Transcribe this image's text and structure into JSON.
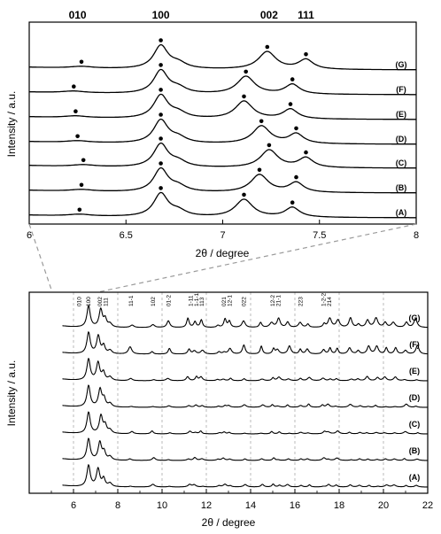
{
  "chart_data": [
    {
      "type": "line",
      "panel": "top (zoomed)",
      "xlabel": "2θ / degree",
      "ylabel": "Intensity / a.u.",
      "xlim": [
        6,
        8
      ],
      "xticks": [
        "6",
        "6.5",
        "7",
        "7.5",
        "8"
      ],
      "peak_labels": [
        {
          "label": "010",
          "x": 6.25
        },
        {
          "label": "100",
          "x": 6.68
        },
        {
          "label": "002",
          "x": 7.24
        },
        {
          "label": "111",
          "x": 7.43
        }
      ],
      "grid": false,
      "series": [
        {
          "name": "(G)",
          "markers": [
            6.27,
            6.68,
            7.23,
            7.43
          ]
        },
        {
          "name": "(F)",
          "markers": [
            6.23,
            6.68,
            7.12,
            7.36
          ]
        },
        {
          "name": "(E)",
          "markers": [
            6.24,
            6.68,
            7.11,
            7.35
          ]
        },
        {
          "name": "(D)",
          "markers": [
            6.25,
            6.68,
            7.2,
            7.38
          ]
        },
        {
          "name": "(C)",
          "markers": [
            6.28,
            6.68,
            7.24,
            7.43
          ]
        },
        {
          "name": "(B)",
          "markers": [
            6.27,
            6.68,
            7.19,
            7.38
          ]
        },
        {
          "name": "(A)",
          "markers": [
            6.26,
            6.68,
            7.11,
            7.36
          ]
        }
      ]
    },
    {
      "type": "line",
      "panel": "bottom (full range)",
      "xlabel": "2θ / degree",
      "ylabel": "Intensity / a.u.",
      "xlim": [
        4,
        22
      ],
      "xticks": [
        "6",
        "8",
        "10",
        "12",
        "14",
        "16",
        "18",
        "20",
        "22"
      ],
      "grid": true,
      "grid_style": "dashed vertical",
      "hkl_labels": [
        {
          "label": "010",
          "x": 6.25
        },
        {
          "label": "100",
          "x": 6.68
        },
        {
          "label": "002",
          "x": 7.2
        },
        {
          "label": "111",
          "x": 7.45
        },
        {
          "label": "11-1",
          "x": 8.6
        },
        {
          "label": "102",
          "x": 9.6
        },
        {
          "label": "01-2",
          "x": 10.3
        },
        {
          "label": "1-11",
          "x": 11.3
        },
        {
          "label": "1-1-1",
          "x": 11.55
        },
        {
          "label": "113",
          "x": 11.8
        },
        {
          "label": "021",
          "x": 12.8
        },
        {
          "label": "12-1",
          "x": 13.05
        },
        {
          "label": "022",
          "x": 13.7
        },
        {
          "label": "12-2",
          "x": 15.0
        },
        {
          "label": "21-1",
          "x": 15.25
        },
        {
          "label": "223",
          "x": 16.25
        },
        {
          "label": "1-2-2",
          "x": 17.3
        },
        {
          "label": "214",
          "x": 17.55
        }
      ],
      "series": [
        {
          "name": "(G)"
        },
        {
          "name": "(F)"
        },
        {
          "name": "(E)"
        },
        {
          "name": "(D)"
        },
        {
          "name": "(C)"
        },
        {
          "name": "(B)"
        },
        {
          "name": "(A)"
        }
      ]
    }
  ]
}
